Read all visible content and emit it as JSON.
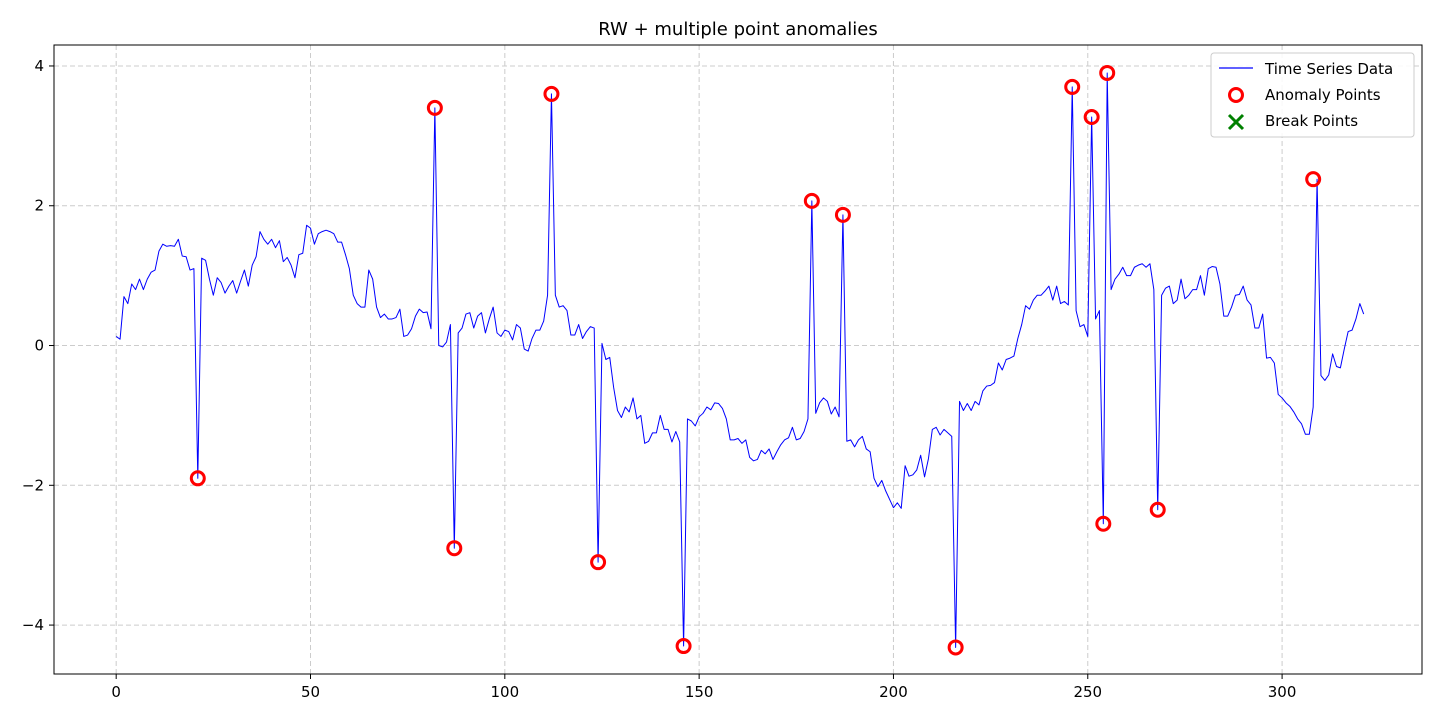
{
  "chart_data": {
    "type": "line",
    "title": "RW + multiple point anomalies",
    "xlabel": "",
    "ylabel": "",
    "xlim": [
      -16,
      336
    ],
    "ylim": [
      -4.7,
      4.3
    ],
    "x_ticks": [
      0,
      50,
      100,
      150,
      200,
      250,
      300
    ],
    "y_ticks": [
      -4,
      -2,
      0,
      2,
      4
    ],
    "x_tick_labels": [
      "0",
      "50",
      "100",
      "150",
      "200",
      "250",
      "300"
    ],
    "y_tick_labels": [
      "−4",
      "−2",
      "0",
      "2",
      "4"
    ],
    "grid": true,
    "legend_position": "top-right",
    "series": [
      {
        "name": "Time Series Data",
        "kind": "line",
        "color": "#0000ff",
        "values": [
          0.13,
          0.09,
          0.7,
          0.6,
          0.88,
          0.8,
          0.95,
          0.8,
          0.95,
          1.05,
          1.08,
          1.35,
          1.45,
          1.42,
          1.43,
          1.42,
          1.52,
          1.28,
          1.27,
          1.08,
          1.1,
          -1.9,
          1.25,
          1.22,
          0.95,
          0.72,
          0.97,
          0.9,
          0.75,
          0.85,
          0.93,
          0.75,
          0.92,
          1.08,
          0.85,
          1.15,
          1.27,
          1.63,
          1.52,
          1.45,
          1.52,
          1.4,
          1.5,
          1.2,
          1.26,
          1.15,
          0.97,
          1.3,
          1.32,
          1.72,
          1.68,
          1.45,
          1.6,
          1.63,
          1.65,
          1.63,
          1.6,
          1.48,
          1.48,
          1.3,
          1.1,
          0.72,
          0.6,
          0.55,
          0.55,
          1.08,
          0.95,
          0.55,
          0.4,
          0.45,
          0.38,
          0.38,
          0.4,
          0.52,
          0.13,
          0.15,
          0.24,
          0.42,
          0.52,
          0.47,
          0.48,
          0.24,
          3.4,
          0.0,
          -0.02,
          0.05,
          0.3,
          -2.9,
          0.18,
          0.25,
          0.45,
          0.47,
          0.25,
          0.42,
          0.47,
          0.18,
          0.38,
          0.55,
          0.18,
          0.13,
          0.22,
          0.2,
          0.08,
          0.3,
          0.25,
          -0.05,
          -0.08,
          0.1,
          0.22,
          0.22,
          0.35,
          0.72,
          3.6,
          0.72,
          0.55,
          0.57,
          0.5,
          0.15,
          0.15,
          0.3,
          0.1,
          0.2,
          0.27,
          0.25,
          -3.1,
          0.03,
          -0.2,
          -0.17,
          -0.6,
          -0.93,
          -1.03,
          -0.88,
          -0.95,
          -0.75,
          -1.05,
          -1.0,
          -1.4,
          -1.37,
          -1.25,
          -1.25,
          -1.0,
          -1.2,
          -1.2,
          -1.38,
          -1.23,
          -1.38,
          -4.3,
          -1.05,
          -1.08,
          -1.15,
          -1.02,
          -0.97,
          -0.88,
          -0.92,
          -0.82,
          -0.83,
          -0.9,
          -1.05,
          -1.35,
          -1.35,
          -1.33,
          -1.4,
          -1.35,
          -1.6,
          -1.65,
          -1.63,
          -1.5,
          -1.55,
          -1.48,
          -1.63,
          -1.52,
          -1.42,
          -1.35,
          -1.32,
          -1.17,
          -1.35,
          -1.33,
          -1.23,
          -1.05,
          2.07,
          -0.97,
          -0.82,
          -0.75,
          -0.8,
          -0.98,
          -0.88,
          -1.02,
          1.87,
          -1.37,
          -1.35,
          -1.45,
          -1.35,
          -1.3,
          -1.48,
          -1.52,
          -1.9,
          -2.02,
          -1.93,
          -2.08,
          -2.2,
          -2.32,
          -2.25,
          -2.33,
          -1.72,
          -1.87,
          -1.85,
          -1.78,
          -1.57,
          -1.88,
          -1.62,
          -1.2,
          -1.17,
          -1.28,
          -1.2,
          -1.25,
          -1.3,
          -4.32,
          -0.8,
          -0.93,
          -0.83,
          -0.93,
          -0.8,
          -0.85,
          -0.65,
          -0.58,
          -0.57,
          -0.53,
          -0.25,
          -0.35,
          -0.2,
          -0.18,
          -0.15,
          0.1,
          0.3,
          0.57,
          0.52,
          0.65,
          0.72,
          0.72,
          0.78,
          0.85,
          0.65,
          0.85,
          0.6,
          0.63,
          0.58,
          3.7,
          0.5,
          0.27,
          0.3,
          0.13,
          3.27,
          0.38,
          0.5,
          -2.55,
          3.9,
          0.8,
          0.95,
          1.02,
          1.12,
          1.0,
          1.0,
          1.12,
          1.15,
          1.17,
          1.12,
          1.17,
          0.8,
          -2.35,
          0.72,
          0.82,
          0.85,
          0.6,
          0.65,
          0.95,
          0.67,
          0.72,
          0.8,
          0.8,
          1.0,
          0.72,
          1.1,
          1.13,
          1.12,
          0.88,
          0.42,
          0.42,
          0.55,
          0.72,
          0.73,
          0.85,
          0.65,
          0.58,
          0.25,
          0.25,
          0.45,
          -0.18,
          -0.17,
          -0.25,
          -0.7,
          -0.75,
          -0.82,
          -0.87,
          -0.95,
          -1.05,
          -1.12,
          -1.27,
          -1.27,
          -0.88,
          2.38,
          -0.43,
          -0.5,
          -0.42,
          -0.12,
          -0.3,
          -0.32,
          -0.05,
          0.2,
          0.22,
          0.38,
          0.6,
          0.45
        ]
      },
      {
        "name": "Anomaly Points",
        "kind": "scatter",
        "marker": "circle-open",
        "color": "#ff0000",
        "points": [
          [
            21,
            -1.9
          ],
          [
            82,
            3.4
          ],
          [
            87,
            -2.9
          ],
          [
            112,
            3.6
          ],
          [
            124,
            -3.1
          ],
          [
            146,
            -4.3
          ],
          [
            179,
            2.07
          ],
          [
            187,
            1.87
          ],
          [
            216,
            -4.32
          ],
          [
            246,
            3.7
          ],
          [
            251,
            3.27
          ],
          [
            254,
            -2.55
          ],
          [
            255,
            3.9
          ],
          [
            268,
            -2.35
          ],
          [
            308,
            2.38
          ]
        ]
      },
      {
        "name": "Break Points",
        "kind": "scatter",
        "marker": "x",
        "color": "#008000",
        "points": []
      }
    ]
  }
}
